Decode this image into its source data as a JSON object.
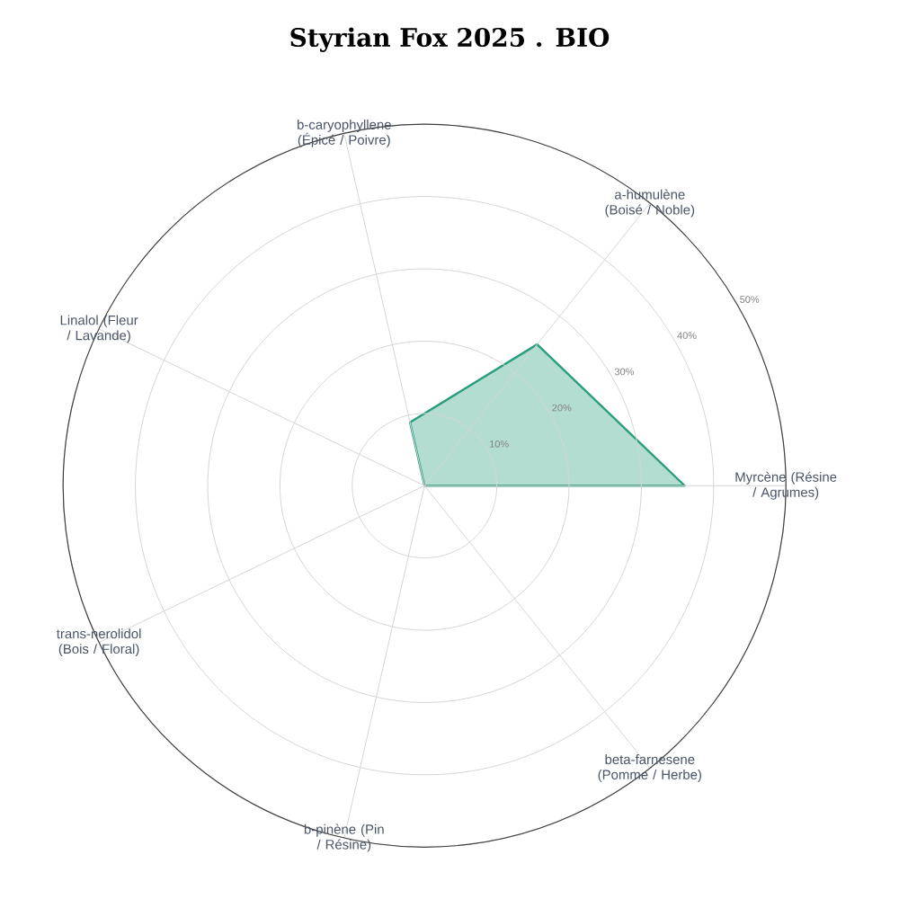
{
  "chart_data": {
    "type": "radar",
    "title": "Styrian Fox 2025 . BIO",
    "categories": [
      "b-caryophyllene (Épicé / Poivre)",
      "a-humulène (Boisé / Noble)",
      "Myrcène (Résine / Agrumes)",
      "beta-farnesene (Pomme / Herbe)",
      "b-pinène (Pin / Résine)",
      "trans-nerolidol (Bois / Floral)",
      "Linalol (Fleur / Lavande)"
    ],
    "series": [
      {
        "color": "#2a9d7f",
        "values": [
          9,
          25,
          36,
          0,
          0,
          0,
          0
        ]
      }
    ],
    "ylim": [
      0,
      50
    ],
    "yticks": [
      {
        "value": 10,
        "label": "10%"
      },
      {
        "value": 20,
        "label": "20%"
      },
      {
        "value": 30,
        "label": "30%"
      },
      {
        "value": 40,
        "label": "40%"
      },
      {
        "value": 50,
        "label": "50%"
      }
    ],
    "grid": true
  }
}
